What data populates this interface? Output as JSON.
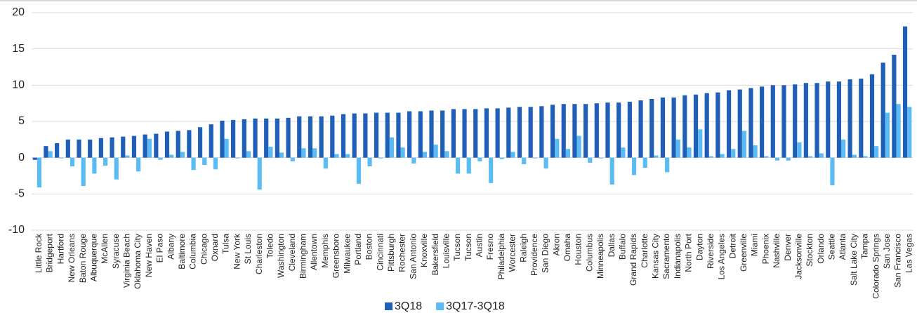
{
  "chart_data": {
    "type": "bar",
    "categories": [
      "Little Rock",
      "Bridgeport",
      "Hartford",
      "New Orleans",
      "Baton Rouge",
      "Albuquerque",
      "McAllen",
      "Syracuse",
      "Virginia Beach",
      "Oklahoma City",
      "New Haven",
      "El Paso",
      "Albany",
      "Baltimore",
      "Columbia",
      "Chicago",
      "Oxnard",
      "Tulsa",
      "New York",
      "St Louis",
      "Charleston",
      "Toledo",
      "Washington",
      "Cleveland",
      "Birmingham",
      "Allentown",
      "Memphis",
      "Greensboro",
      "Milwaukee",
      "Portland",
      "Boston",
      "Cincinnati",
      "Pittsburgh",
      "Rochester",
      "San Antonio",
      "Knoxville",
      "Bakersfield",
      "Louisville",
      "Tucson",
      "Tucson",
      "Austin",
      "Fresno",
      "Philadelphia",
      "Worcester",
      "Raleigh",
      "Providence",
      "San Diego",
      "Akron",
      "Omaha",
      "Houston",
      "Columbus",
      "Minneapolis",
      "Dallas",
      "Buffalo",
      "Grand Rapids",
      "Charlotte",
      "Kansas City",
      "Sacramento",
      "Indianapolis",
      "North Port",
      "Dayton",
      "Riverside",
      "Los Angeles",
      "Detroit",
      "Greenville",
      "Miami",
      "Phoenix",
      "Nashville",
      "Denver",
      "Jacksonville",
      "Stockton",
      "Orlando",
      "Seattle",
      "Atlanta",
      "Salt Lake City",
      "Tampa",
      "Colorado Springs",
      "San Jose",
      "San Francisco",
      "Las Vegas"
    ],
    "series": [
      {
        "name": "3Q18",
        "color": "#1f5fb8",
        "values": [
          -0.3,
          1.6,
          2.0,
          2.5,
          2.5,
          2.5,
          2.7,
          2.8,
          2.9,
          3.0,
          3.2,
          3.3,
          3.6,
          3.7,
          3.8,
          4.2,
          4.6,
          5.1,
          5.2,
          5.3,
          5.4,
          5.4,
          5.4,
          5.5,
          5.7,
          5.7,
          5.7,
          5.8,
          6.0,
          6.1,
          6.1,
          6.2,
          6.2,
          6.2,
          6.4,
          6.4,
          6.5,
          6.5,
          6.7,
          6.7,
          6.7,
          6.8,
          6.8,
          6.9,
          7.0,
          7.0,
          7.1,
          7.3,
          7.4,
          7.4,
          7.4,
          7.5,
          7.6,
          7.6,
          7.7,
          7.9,
          8.1,
          8.3,
          8.3,
          8.6,
          8.7,
          8.9,
          9.0,
          9.3,
          9.4,
          9.6,
          9.8,
          10.0,
          10.0,
          10.1,
          10.3,
          10.3,
          10.5,
          10.5,
          10.8,
          10.9,
          11.5,
          13.1,
          14.2,
          18.1
        ]
      },
      {
        "name": "3Q17-3Q18",
        "color": "#5bbcf5",
        "values": [
          -4.1,
          0.9,
          -0.1,
          -1.2,
          -3.9,
          -2.2,
          -1.1,
          -3.0,
          0.3,
          -1.9,
          2.6,
          -0.3,
          0.4,
          0.8,
          -1.7,
          -1.0,
          -1.6,
          2.6,
          -0.1,
          0.9,
          -4.4,
          1.5,
          0.7,
          -0.5,
          1.3,
          1.3,
          -1.5,
          0.5,
          0.5,
          -3.6,
          -1.2,
          -0.1,
          2.8,
          1.4,
          -0.8,
          0.8,
          1.8,
          0.9,
          -2.2,
          -2.2,
          -0.5,
          -3.5,
          -0.2,
          0.8,
          -0.9,
          -0.1,
          -1.5,
          2.6,
          1.2,
          3.0,
          -0.7,
          -0.1,
          -3.7,
          1.4,
          -2.4,
          -1.4,
          0.3,
          -2.0,
          2.5,
          1.4,
          3.9,
          0.2,
          0.5,
          1.2,
          3.7,
          1.7,
          0.2,
          -0.4,
          -0.4,
          2.1,
          0.2,
          0.6,
          -3.8,
          2.5,
          0.4,
          0.2,
          1.6,
          6.2,
          7.4,
          7.0
        ]
      }
    ],
    "ylim": [
      -10,
      20
    ],
    "yticks": [
      -10,
      -5,
      0,
      5,
      10,
      15,
      20
    ],
    "grid": true,
    "legend": "bottom"
  }
}
